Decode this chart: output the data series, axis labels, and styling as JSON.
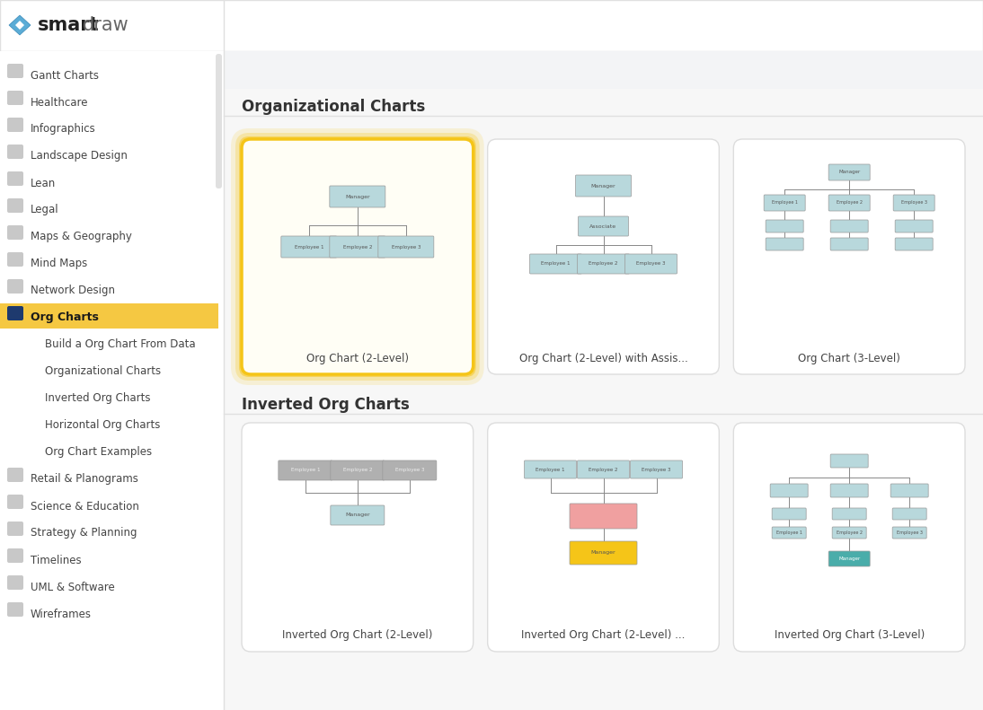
{
  "bg_color": "#f7f7f7",
  "sidebar_bg": "#ffffff",
  "header_bg": "#ffffff",
  "content_top_bg": "#f3f4f6",
  "box_color_blue": "#b8d8dc",
  "box_color_gray": "#b0b0b0",
  "box_color_pink": "#f0a0a0",
  "box_color_yellow": "#f5c518",
  "box_color_teal": "#4aadaa",
  "active_bg": "#f5c842",
  "sidebar_items": [
    {
      "label": "Gantt Charts",
      "active": false,
      "indent": 0
    },
    {
      "label": "Healthcare",
      "active": false,
      "indent": 0
    },
    {
      "label": "Infographics",
      "active": false,
      "indent": 0
    },
    {
      "label": "Landscape Design",
      "active": false,
      "indent": 0
    },
    {
      "label": "Lean",
      "active": false,
      "indent": 0
    },
    {
      "label": "Legal",
      "active": false,
      "indent": 0
    },
    {
      "label": "Maps & Geography",
      "active": false,
      "indent": 0
    },
    {
      "label": "Mind Maps",
      "active": false,
      "indent": 0
    },
    {
      "label": "Network Design",
      "active": false,
      "indent": 0
    },
    {
      "label": "Org Charts",
      "active": true,
      "indent": 0
    },
    {
      "label": "Build a Org Chart From Data",
      "active": false,
      "indent": 1
    },
    {
      "label": "Organizational Charts",
      "active": false,
      "indent": 1
    },
    {
      "label": "Inverted Org Charts",
      "active": false,
      "indent": 1
    },
    {
      "label": "Horizontal Org Charts",
      "active": false,
      "indent": 1
    },
    {
      "label": "Org Chart Examples",
      "active": false,
      "indent": 1
    },
    {
      "label": "Retail & Planograms",
      "active": false,
      "indent": 0
    },
    {
      "label": "Science & Education",
      "active": false,
      "indent": 0
    },
    {
      "label": "Strategy & Planning",
      "active": false,
      "indent": 0
    },
    {
      "label": "Timelines",
      "active": false,
      "indent": 0
    },
    {
      "label": "UML & Software",
      "active": false,
      "indent": 0
    },
    {
      "label": "Wireframes",
      "active": false,
      "indent": 0
    }
  ],
  "section1_title": "Organizational Charts",
  "section2_title": "Inverted Org Charts",
  "row1_cards": [
    {
      "title": "Org Chart (2-Level)",
      "highlighted": true
    },
    {
      "title": "Org Chart (2-Level) with Assis...",
      "highlighted": false
    },
    {
      "title": "Org Chart (3-Level)",
      "highlighted": false
    }
  ],
  "row2_cards": [
    {
      "title": "Inverted Org Chart (2-Level)",
      "highlighted": false
    },
    {
      "title": "Inverted Org Chart (2-Level) ...",
      "highlighted": false
    },
    {
      "title": "Inverted Org Chart (3-Level)",
      "highlighted": false
    }
  ]
}
